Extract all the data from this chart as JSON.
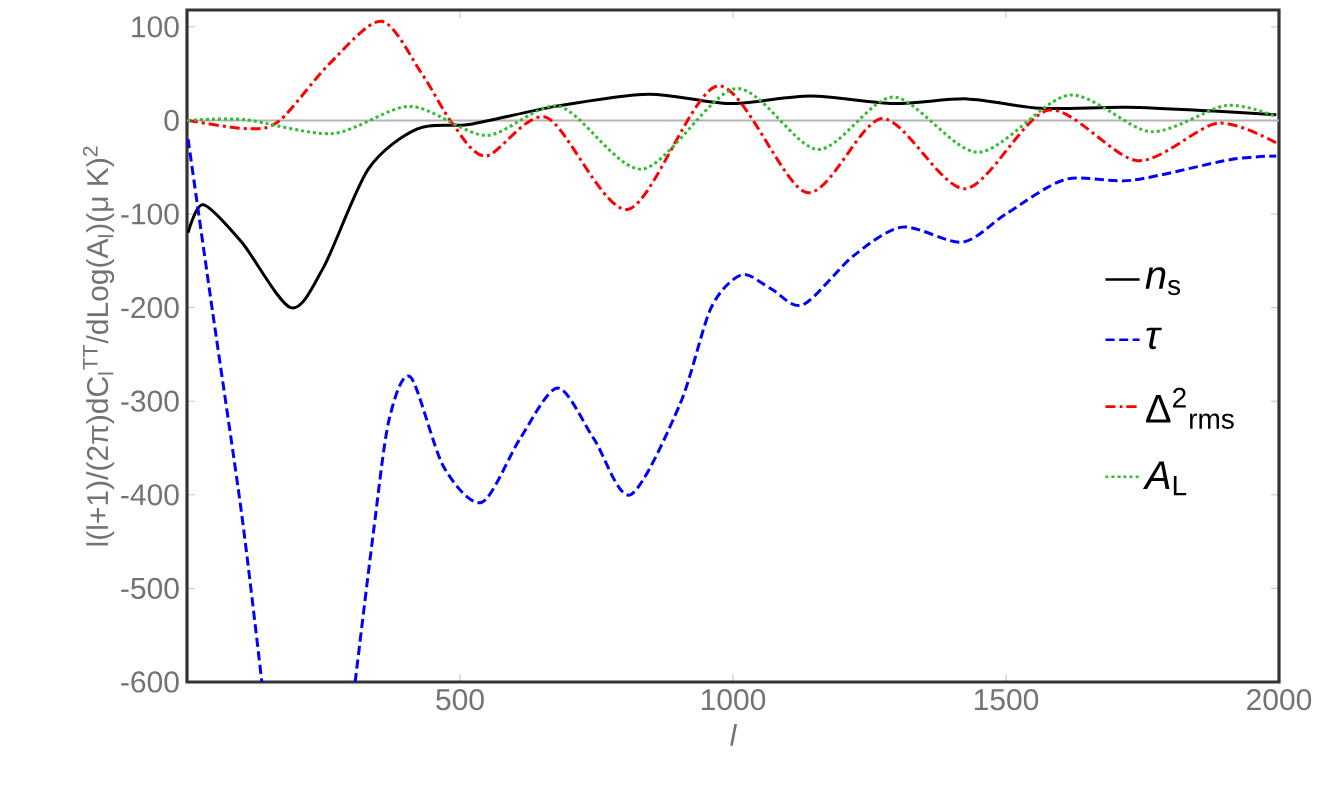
{
  "chart_data": {
    "type": "line",
    "xlabel": "l",
    "ylabel": "l(l+1)/(2π)dC$_{l}$$^{TT}$/dLog(A$_{l}$)(μ K)$^{2}$",
    "xlim": [
      0,
      2000
    ],
    "ylim": [
      -600,
      118
    ],
    "xticks": [
      500,
      1000,
      1500,
      2000
    ],
    "yticks": [
      -600,
      -500,
      -400,
      -300,
      -200,
      -100,
      0,
      100
    ],
    "legend": "right",
    "ref_lines": [
      {
        "axis": "y",
        "value": 0,
        "color": "#b4b4b4"
      }
    ],
    "series": [
      {
        "name": "*n*$_{s}$",
        "color": "#000000",
        "line_style": "solid",
        "x": [
          2,
          30,
          100,
          190,
          250,
          332,
          422,
          520,
          675,
          845,
          993,
          1142,
          1294,
          1429,
          1562,
          1721,
          1880,
          1995
        ],
        "values": [
          -120,
          -90,
          -130,
          -200,
          -157,
          -52,
          -9,
          -4,
          15,
          28,
          18,
          26,
          18,
          23,
          13,
          14,
          10,
          6
        ]
      },
      {
        "name": "*τ*",
        "color": "#0000ff",
        "line_style": "dashed",
        "x": [
          2,
          47,
          100,
          137,
          200,
          308,
          341,
          370,
          409,
          470,
          540,
          610,
          679,
          745,
          812,
          903,
          960,
          1016,
          1070,
          1128,
          1220,
          1310,
          1420,
          1500,
          1609,
          1730,
          1910,
          1995
        ],
        "values": [
          -20,
          -205,
          -420,
          -600,
          null,
          -600,
          -442,
          -320,
          -274,
          -370,
          -408,
          -340,
          -286,
          -340,
          -400,
          -303,
          -200,
          -165,
          -180,
          -197,
          -145,
          -114,
          -130,
          -100,
          -63,
          -64,
          -42,
          -38
        ]
      },
      {
        "name": "Δ$^{2}$$_{rms}$",
        "color": "#ff0000",
        "line_style": "dashdot",
        "x": [
          2,
          113,
          170,
          260,
          356,
          430,
          487,
          548,
          659,
          808,
          973,
          1135,
          1274,
          1425,
          1578,
          1741,
          1887,
          1995
        ],
        "values": [
          0,
          -9,
          0,
          60,
          106,
          50,
          -4,
          -38,
          3,
          -95,
          37,
          -77,
          2,
          -73,
          11,
          -43,
          -3,
          -24
        ]
      },
      {
        "name": "*A*$_{L}$",
        "color": "#33bb33",
        "line_style": "dotted",
        "x": [
          2,
          104,
          267,
          409,
          548,
          682,
          834,
          1005,
          1155,
          1294,
          1449,
          1615,
          1765,
          1903,
          1995
        ],
        "values": [
          0,
          1,
          -14,
          15,
          -16,
          15,
          -52,
          34,
          -31,
          25,
          -34,
          27,
          -12,
          16,
          4
        ]
      }
    ]
  }
}
